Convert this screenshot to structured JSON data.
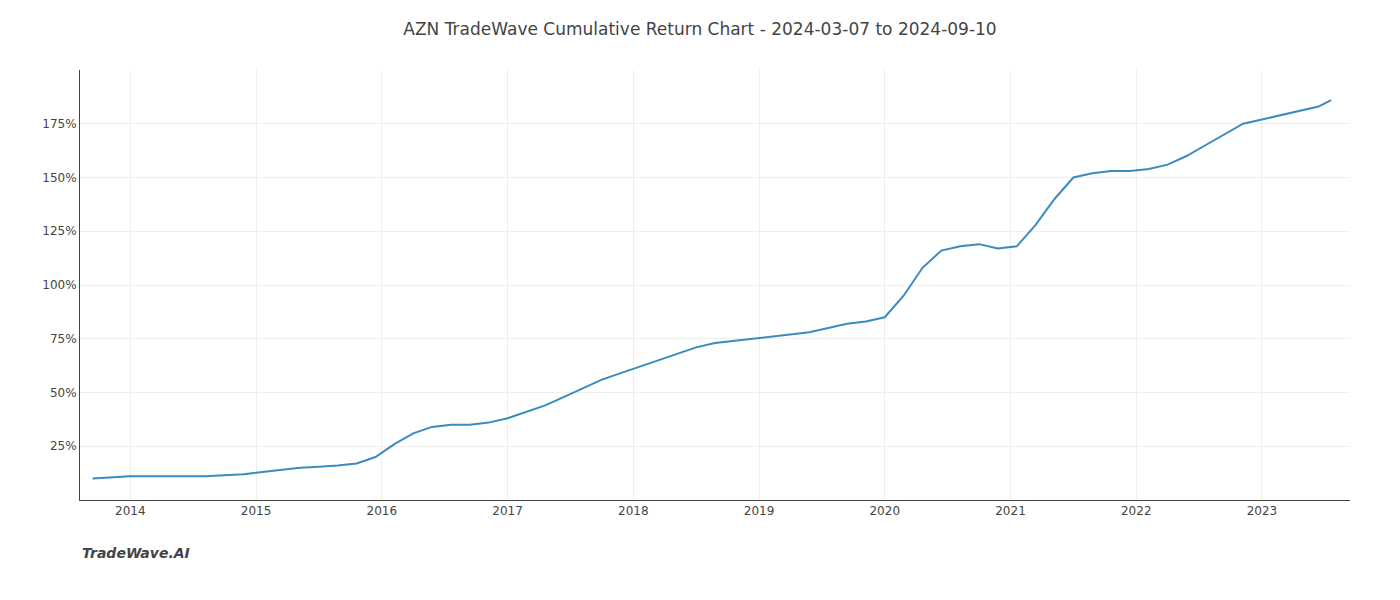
{
  "chart_data": {
    "type": "line",
    "title": "AZN TradeWave Cumulative Return Chart - 2024-03-07 to 2024-09-10",
    "annotations": [
      "TradeWave.AI"
    ],
    "x": [
      2013.7,
      2013.85,
      2014.0,
      2014.15,
      2014.3,
      2014.45,
      2014.6,
      2014.75,
      2014.9,
      2015.05,
      2015.2,
      2015.35,
      2015.5,
      2015.65,
      2015.8,
      2015.95,
      2016.1,
      2016.25,
      2016.4,
      2016.55,
      2016.7,
      2016.85,
      2017.0,
      2017.15,
      2017.3,
      2017.45,
      2017.6,
      2017.75,
      2017.9,
      2018.05,
      2018.2,
      2018.35,
      2018.5,
      2018.65,
      2018.8,
      2018.95,
      2019.1,
      2019.25,
      2019.4,
      2019.55,
      2019.7,
      2019.85,
      2020.0,
      2020.15,
      2020.3,
      2020.45,
      2020.6,
      2020.75,
      2020.9,
      2021.05,
      2021.2,
      2021.35,
      2021.5,
      2021.65,
      2021.8,
      2021.95,
      2022.1,
      2022.25,
      2022.4,
      2022.55,
      2022.7,
      2022.85,
      2023.0,
      2023.15,
      2023.3,
      2023.45,
      2023.55
    ],
    "values": [
      10,
      10.5,
      11,
      11,
      11,
      11,
      11,
      11.5,
      12,
      13,
      14,
      15,
      15.5,
      16,
      17,
      20,
      26,
      31,
      34,
      35,
      35,
      36,
      38,
      41,
      44,
      48,
      52,
      56,
      59,
      62,
      65,
      68,
      71,
      73,
      74,
      75,
      76,
      77,
      78,
      80,
      82,
      83,
      85,
      95,
      108,
      116,
      118,
      119,
      117,
      118,
      128,
      140,
      150,
      152,
      153,
      153,
      154,
      156,
      160,
      165,
      170,
      175,
      177,
      179,
      181,
      183,
      186
    ],
    "color": "#3a8bbf",
    "xlim": [
      2013.6,
      2023.7
    ],
    "xticks": [
      2014,
      2015,
      2016,
      2017,
      2018,
      2019,
      2020,
      2021,
      2022,
      2023
    ],
    "ylim": [
      0,
      200
    ],
    "yticks": [
      {
        "value": 25,
        "label": "25%"
      },
      {
        "value": 50,
        "label": "50%"
      },
      {
        "value": 75,
        "label": "75%"
      },
      {
        "value": 100,
        "label": "100%"
      },
      {
        "value": 125,
        "label": "125%"
      },
      {
        "value": 150,
        "label": "150%"
      },
      {
        "value": 175,
        "label": "175%"
      }
    ],
    "grid": true
  }
}
